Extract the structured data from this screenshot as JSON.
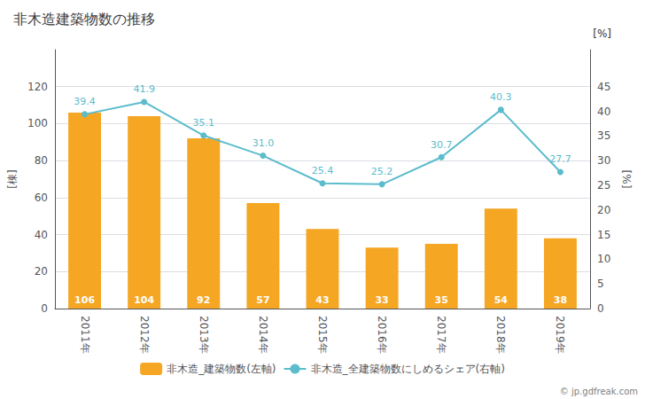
{
  "chart_data": {
    "type": "bar",
    "title": "非木造建築物数の推移",
    "categories": [
      "2011年",
      "2012年",
      "2013年",
      "2014年",
      "2015年",
      "2016年",
      "2017年",
      "2018年",
      "2019年"
    ],
    "series": [
      {
        "name": "非木造_建築物数(左軸)",
        "type": "bar",
        "color": "#f5a623",
        "values": [
          106,
          104,
          92,
          57,
          43,
          33,
          35,
          54,
          38
        ]
      },
      {
        "name": "非木造_全建築物数にしめるシェア(右軸)",
        "type": "line",
        "axis": "y2",
        "color": "#5bbccc",
        "marker": "circle",
        "values": [
          39.4,
          41.9,
          35.1,
          31.0,
          25.4,
          25.2,
          30.7,
          40.3,
          27.7
        ],
        "value_labels": [
          "39.4",
          "41.9",
          "35.1",
          "31.0",
          "25.4",
          "25.2",
          "30.7",
          "40.3",
          "27.7"
        ]
      }
    ],
    "ylabel": "[棟]",
    "y2label": "[%]",
    "annotations": [
      "[%]",
      "© jp.gdfreak.com"
    ],
    "ylim": [
      0,
      140
    ],
    "yticks": [
      0,
      20,
      40,
      60,
      80,
      100,
      120
    ],
    "y2lim": [
      0,
      52.5
    ],
    "y2ticks": [
      0,
      5,
      10,
      15,
      20,
      25,
      30,
      35,
      40,
      45
    ],
    "grid": true,
    "legend": "bottom",
    "data_labels": true
  }
}
